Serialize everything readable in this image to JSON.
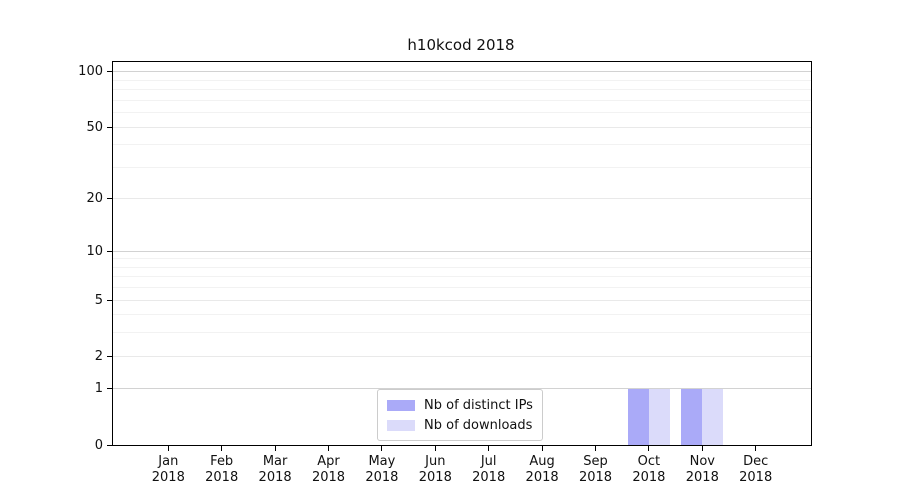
{
  "title": "h10kcod 2018",
  "chart_data": {
    "type": "bar",
    "title": "h10kcod 2018",
    "categories": [
      "Jan 2018",
      "Feb 2018",
      "Mar 2018",
      "Apr 2018",
      "May 2018",
      "Jun 2018",
      "Jul 2018",
      "Aug 2018",
      "Sep 2018",
      "Oct 2018",
      "Nov 2018",
      "Dec 2018"
    ],
    "series": [
      {
        "name": "Nb of distinct IPs",
        "color": "#aaaaf8",
        "values": [
          0,
          0,
          0,
          0,
          0,
          0,
          0,
          0,
          0,
          1,
          1,
          0
        ]
      },
      {
        "name": "Nb of downloads",
        "color": "#dbdbfa",
        "values": [
          0,
          0,
          0,
          0,
          0,
          0,
          0,
          0,
          0,
          1,
          1,
          0
        ]
      }
    ],
    "xlabel": "",
    "ylabel": "",
    "yscale": "log1p",
    "ylim": [
      0,
      113
    ],
    "yticks": [
      0,
      1,
      2,
      5,
      10,
      20,
      50,
      100
    ],
    "yticks_major_emphasis": [
      1,
      10,
      100
    ],
    "yticks_minor": [
      3,
      4,
      6,
      7,
      8,
      9,
      30,
      40,
      60,
      70,
      80,
      90
    ],
    "grid": true,
    "legend_position": "lower center"
  },
  "colors": {
    "spine": "#000000",
    "grid_major": "#d2d2d2",
    "grid_labeled": "#e9e9e9",
    "grid_minor": "#f2f2f2",
    "legend_border": "#cccccc",
    "background": "#ffffff"
  }
}
